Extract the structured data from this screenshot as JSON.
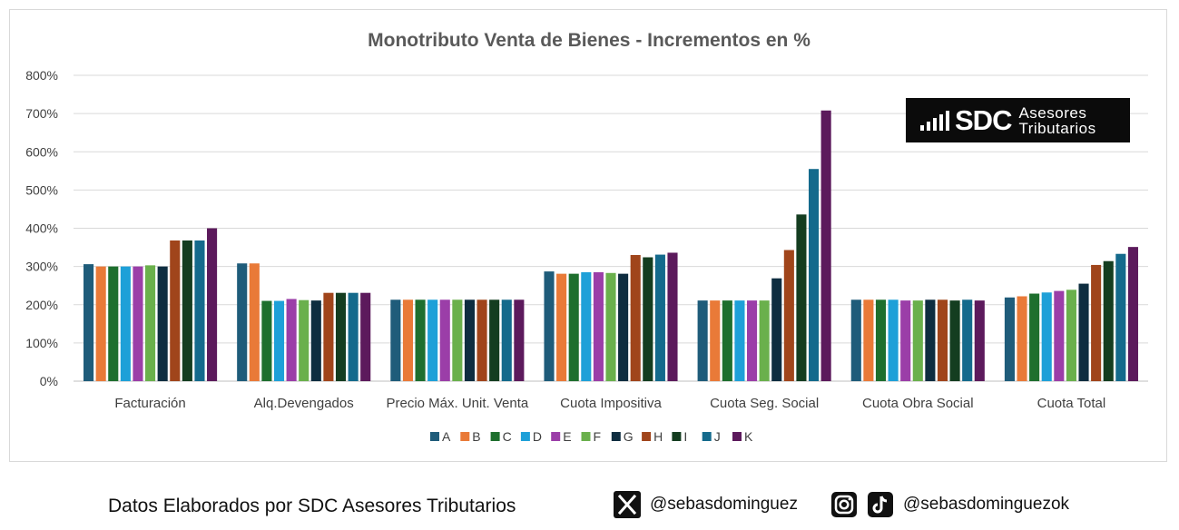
{
  "chart_data": {
    "type": "bar",
    "title": "Monotributo Venta de Bienes  - Incrementos en %",
    "xlabel": "",
    "ylabel": "",
    "ylim": [
      0,
      800
    ],
    "yticks": [
      0,
      100,
      200,
      300,
      400,
      500,
      600,
      700,
      800
    ],
    "ytick_labels": [
      "0%",
      "100%",
      "200%",
      "300%",
      "400%",
      "500%",
      "600%",
      "700%",
      "800%"
    ],
    "grid": true,
    "legend_position": "bottom",
    "categories": [
      "Facturación",
      "Alq.Devengados",
      "Precio Máx. Unit. Venta",
      "Cuota Impositiva",
      "Cuota Seg. Social",
      "Cuota Obra Social",
      "Cuota Total"
    ],
    "series": [
      {
        "name": "A",
        "color": "#1f5c7a",
        "values": [
          306,
          308,
          213,
          287,
          211,
          213,
          219
        ]
      },
      {
        "name": "B",
        "color": "#e97a38",
        "values": [
          300,
          308,
          213,
          281,
          211,
          213,
          222
        ]
      },
      {
        "name": "C",
        "color": "#1e6f2e",
        "values": [
          300,
          210,
          213,
          281,
          211,
          213,
          229
        ]
      },
      {
        "name": "D",
        "color": "#1ea0d8",
        "values": [
          300,
          210,
          213,
          285,
          211,
          213,
          232
        ]
      },
      {
        "name": "E",
        "color": "#9b3ea8",
        "values": [
          300,
          215,
          213,
          285,
          211,
          211,
          236
        ]
      },
      {
        "name": "F",
        "color": "#6ab04c",
        "values": [
          303,
          212,
          213,
          283,
          211,
          211,
          239
        ]
      },
      {
        "name": "G",
        "color": "#0e2d40",
        "values": [
          300,
          211,
          213,
          281,
          269,
          213,
          255
        ]
      },
      {
        "name": "H",
        "color": "#a0451b",
        "values": [
          368,
          231,
          213,
          330,
          343,
          213,
          304
        ]
      },
      {
        "name": "I",
        "color": "#143d20",
        "values": [
          368,
          231,
          213,
          324,
          436,
          211,
          314
        ]
      },
      {
        "name": "J",
        "color": "#146a8c",
        "values": [
          368,
          231,
          213,
          331,
          555,
          213,
          333
        ]
      },
      {
        "name": "K",
        "color": "#5c1a5c",
        "values": [
          400,
          231,
          213,
          336,
          708,
          211,
          351
        ]
      }
    ]
  },
  "logo": {
    "mark": "SDC",
    "line1": "Asesores",
    "line2": "Tributarios"
  },
  "footer": {
    "credit": "Datos Elaborados por SDC Asesores Tributarios",
    "x_handle": "@sebasdominguez",
    "insta_tiktok_handle": "@sebasdominguezok",
    "x_icon": "x-logo-icon",
    "instagram_icon": "instagram-icon",
    "tiktok_icon": "tiktok-icon"
  }
}
